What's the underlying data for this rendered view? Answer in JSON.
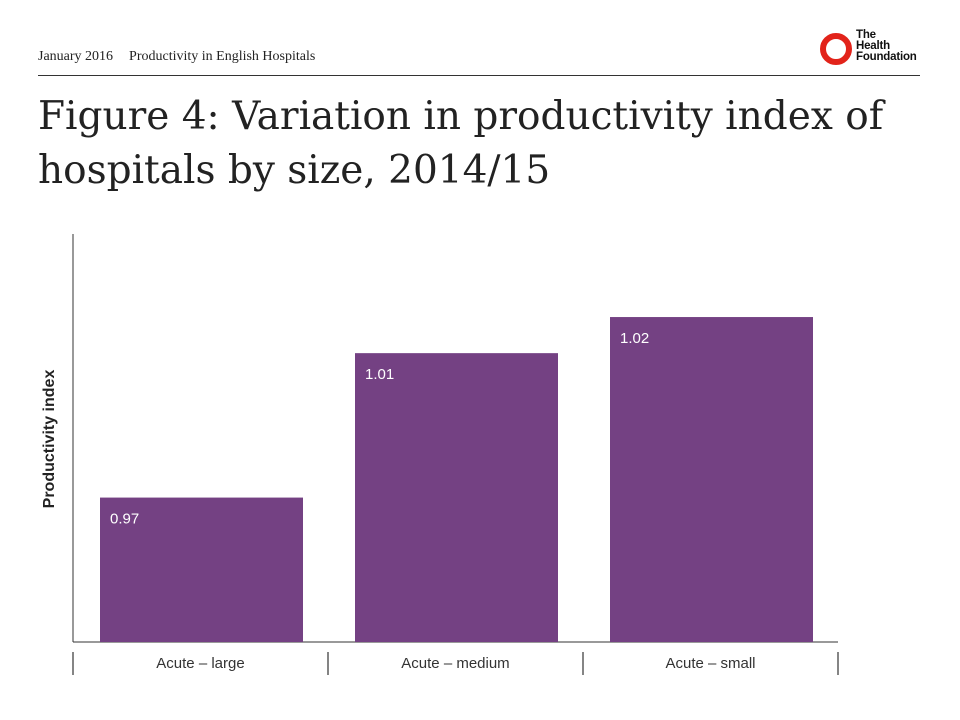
{
  "header": {
    "date": "January 2016",
    "doc_title": "Productivity in English Hospitals",
    "logo": {
      "line1": "The",
      "line2": "Health",
      "line3": "Foundation",
      "color": "#e2231a"
    }
  },
  "title": "Figure 4: Variation in productivity index of hospitals by size, 2014/15",
  "chart_data": {
    "type": "bar",
    "title": "",
    "xlabel": "",
    "ylabel": "Productivity index",
    "categories": [
      "Acute – large",
      "Acute – medium",
      "Acute – small"
    ],
    "values": [
      0.97,
      1.01,
      1.02
    ],
    "data_labels": [
      "0.97",
      "1.01",
      "1.02"
    ],
    "ylim": [
      0.93,
      1.043
    ],
    "grid": false,
    "legend": "none",
    "bar_color": "#744183"
  }
}
